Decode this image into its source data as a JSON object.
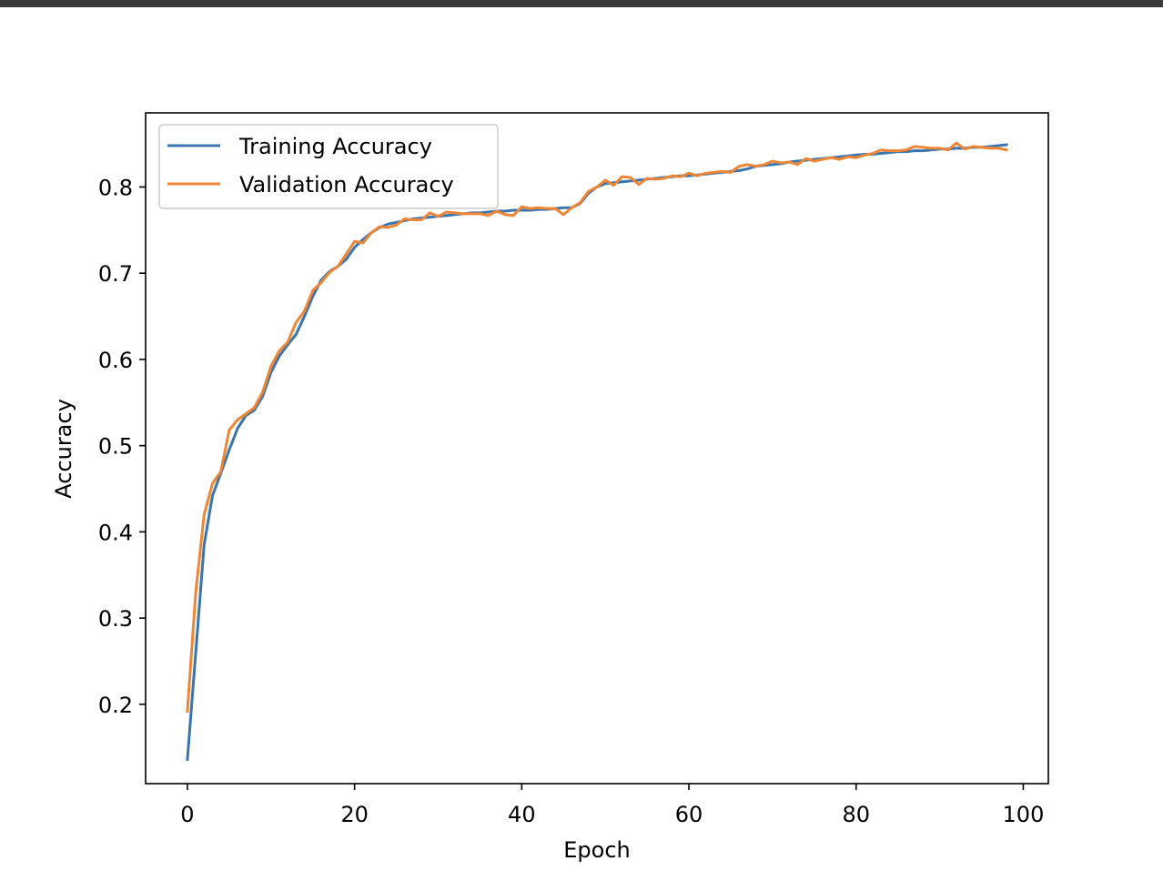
{
  "chart_data": {
    "type": "line",
    "title": "",
    "xlabel": "Epoch",
    "ylabel": "Accuracy",
    "xlim": [
      -5,
      103
    ],
    "ylim": [
      0.108,
      0.886
    ],
    "xticks": [
      0,
      20,
      40,
      60,
      80,
      100
    ],
    "xtick_labels": [
      "0",
      "20",
      "40",
      "60",
      "80",
      "100"
    ],
    "yticks": [
      0.2,
      0.3,
      0.4,
      0.5,
      0.6,
      0.7,
      0.8
    ],
    "ytick_labels": [
      "0.2",
      "0.3",
      "0.4",
      "0.5",
      "0.6",
      "0.7",
      "0.8"
    ],
    "grid": false,
    "legend_position": "top-left",
    "series": [
      {
        "name": "Training Accuracy",
        "color": "#3b75af",
        "x": [
          0,
          1,
          2,
          3,
          4,
          5,
          6,
          7,
          8,
          9,
          10,
          11,
          12,
          13,
          14,
          15,
          16,
          17,
          18,
          19,
          20,
          21,
          22,
          23,
          24,
          25,
          26,
          27,
          28,
          29,
          30,
          31,
          32,
          33,
          34,
          35,
          36,
          37,
          38,
          39,
          40,
          41,
          42,
          43,
          44,
          45,
          46,
          47,
          48,
          49,
          50,
          51,
          52,
          53,
          54,
          55,
          56,
          57,
          58,
          59,
          60,
          61,
          62,
          63,
          64,
          65,
          66,
          67,
          68,
          69,
          70,
          71,
          72,
          73,
          74,
          75,
          76,
          77,
          78,
          79,
          80,
          81,
          82,
          83,
          84,
          85,
          86,
          87,
          88,
          89,
          90,
          91,
          92,
          93,
          94,
          95,
          96,
          97,
          98
        ],
        "values": [
          0.136,
          0.26,
          0.385,
          0.442,
          0.468,
          0.495,
          0.52,
          0.535,
          0.541,
          0.557,
          0.585,
          0.604,
          0.617,
          0.629,
          0.65,
          0.673,
          0.692,
          0.702,
          0.708,
          0.716,
          0.73,
          0.739,
          0.747,
          0.753,
          0.757,
          0.759,
          0.761,
          0.763,
          0.764,
          0.765,
          0.766,
          0.767,
          0.768,
          0.769,
          0.77,
          0.77,
          0.771,
          0.772,
          0.772,
          0.773,
          0.773,
          0.773,
          0.774,
          0.774,
          0.775,
          0.776,
          0.776,
          0.781,
          0.793,
          0.8,
          0.804,
          0.805,
          0.806,
          0.807,
          0.808,
          0.809,
          0.81,
          0.811,
          0.812,
          0.813,
          0.813,
          0.814,
          0.815,
          0.816,
          0.817,
          0.818,
          0.819,
          0.821,
          0.824,
          0.825,
          0.826,
          0.827,
          0.829,
          0.83,
          0.831,
          0.832,
          0.833,
          0.834,
          0.835,
          0.836,
          0.837,
          0.838,
          0.838,
          0.839,
          0.84,
          0.841,
          0.841,
          0.842,
          0.842,
          0.843,
          0.844,
          0.844,
          0.845,
          0.845,
          0.846,
          0.846,
          0.847,
          0.848,
          0.849
        ]
      },
      {
        "name": "Validation Accuracy",
        "color": "#ef8636",
        "x": [
          0,
          1,
          2,
          3,
          4,
          5,
          6,
          7,
          8,
          9,
          10,
          11,
          12,
          13,
          14,
          15,
          16,
          17,
          18,
          19,
          20,
          21,
          22,
          23,
          24,
          25,
          26,
          27,
          28,
          29,
          30,
          31,
          32,
          33,
          34,
          35,
          36,
          37,
          38,
          39,
          40,
          41,
          42,
          43,
          44,
          45,
          46,
          47,
          48,
          49,
          50,
          51,
          52,
          53,
          54,
          55,
          56,
          57,
          58,
          59,
          60,
          61,
          62,
          63,
          64,
          65,
          66,
          67,
          68,
          69,
          70,
          71,
          72,
          73,
          74,
          75,
          76,
          77,
          78,
          79,
          80,
          81,
          82,
          83,
          84,
          85,
          86,
          87,
          88,
          89,
          90,
          91,
          92,
          93,
          94,
          95,
          96,
          97,
          98
        ],
        "values": [
          0.192,
          0.33,
          0.42,
          0.456,
          0.47,
          0.518,
          0.53,
          0.537,
          0.544,
          0.562,
          0.592,
          0.61,
          0.62,
          0.643,
          0.656,
          0.68,
          0.689,
          0.701,
          0.708,
          0.722,
          0.737,
          0.735,
          0.747,
          0.754,
          0.753,
          0.756,
          0.763,
          0.762,
          0.762,
          0.77,
          0.766,
          0.771,
          0.77,
          0.769,
          0.769,
          0.769,
          0.767,
          0.772,
          0.768,
          0.767,
          0.777,
          0.775,
          0.776,
          0.775,
          0.775,
          0.768,
          0.776,
          0.782,
          0.795,
          0.8,
          0.808,
          0.802,
          0.812,
          0.811,
          0.803,
          0.81,
          0.809,
          0.81,
          0.813,
          0.812,
          0.816,
          0.813,
          0.816,
          0.817,
          0.818,
          0.817,
          0.824,
          0.826,
          0.824,
          0.826,
          0.83,
          0.828,
          0.829,
          0.826,
          0.833,
          0.83,
          0.832,
          0.834,
          0.832,
          0.835,
          0.834,
          0.837,
          0.839,
          0.843,
          0.842,
          0.842,
          0.843,
          0.847,
          0.846,
          0.845,
          0.845,
          0.843,
          0.851,
          0.844,
          0.847,
          0.846,
          0.845,
          0.845,
          0.843
        ]
      }
    ]
  }
}
